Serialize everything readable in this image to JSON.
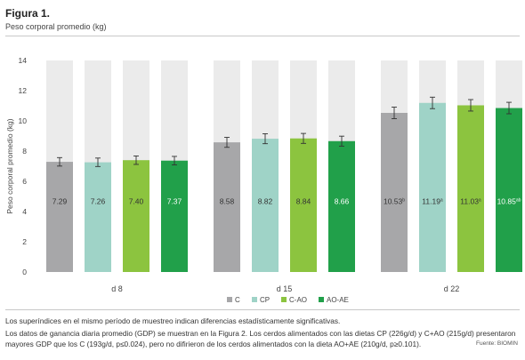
{
  "figure": {
    "title": "Figura 1.",
    "subtitle": "Peso corporal promedio (kg)"
  },
  "footnotes": {
    "line1": "Los superíndices en el mismo período de muestreo indican diferencias estadísticamente significativas.",
    "line2": "Los datos de ganancia diaria promedio (GDP) se muestran en la Figura 2. Los cerdos alimentados con las dietas CP (226g/d) y C+AO (215g/d) presentaron",
    "line3": "mayores GDP que los C (193g/d, p≤0.024), pero no difirieron de los cerdos alimentados con la dieta AO+AE (210g/d, p≥0.101).",
    "source": "Fuente: BIOMIN"
  },
  "chart_data": {
    "type": "bar",
    "ylabel": "Peso corporal promedio (kg)",
    "ylim": [
      0,
      14
    ],
    "yticks": [
      0,
      2,
      4,
      6,
      8,
      10,
      12,
      14
    ],
    "grid": false,
    "legend_position": "bottom-center",
    "groups": [
      "d 8",
      "d 15",
      "d 22"
    ],
    "background_bar_color": "#ebebeb",
    "series": [
      {
        "name": "C",
        "color": "#a7a7a9",
        "values": [
          7.29,
          8.58,
          10.53
        ],
        "labels": [
          "7.29",
          "8.58",
          "10.53"
        ],
        "superscripts": [
          "",
          "",
          "b"
        ],
        "errors": [
          0.28,
          0.33,
          0.38
        ]
      },
      {
        "name": "CP",
        "color": "#9fd3c7",
        "values": [
          7.26,
          8.82,
          11.19
        ],
        "labels": [
          "7.26",
          "8.82",
          "11.19"
        ],
        "superscripts": [
          "",
          "",
          "a"
        ],
        "errors": [
          0.28,
          0.33,
          0.38
        ]
      },
      {
        "name": "C-AO",
        "color": "#8cc43f",
        "values": [
          7.4,
          8.84,
          11.03
        ],
        "labels": [
          "7.40",
          "8.84",
          "11.03"
        ],
        "superscripts": [
          "",
          "",
          "a"
        ],
        "errors": [
          0.28,
          0.33,
          0.38
        ]
      },
      {
        "name": "AO-AE",
        "color": "#21a04a",
        "values": [
          7.37,
          8.66,
          10.85
        ],
        "labels": [
          "7.37",
          "8.66",
          "10.85"
        ],
        "superscripts": [
          "",
          "",
          "ab"
        ],
        "errors": [
          0.28,
          0.33,
          0.38
        ]
      }
    ]
  }
}
